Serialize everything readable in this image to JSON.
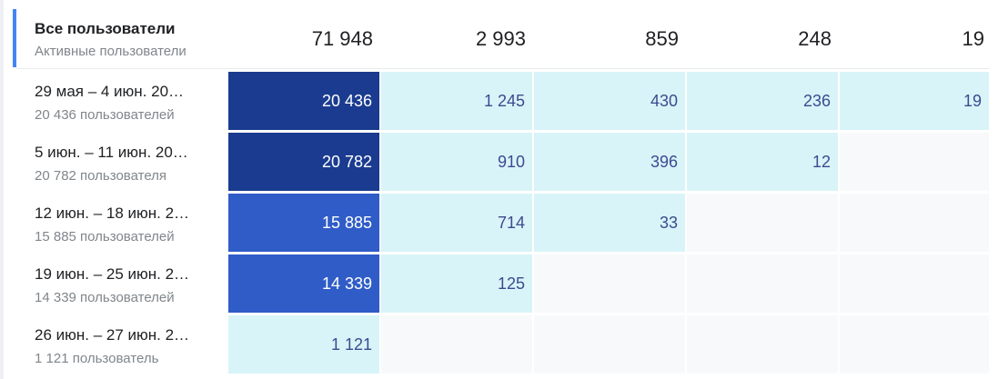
{
  "header": {
    "title": "Все пользователи",
    "subtitle": "Активные пользователи",
    "totals": [
      "71 948",
      "2 993",
      "859",
      "248",
      "19"
    ]
  },
  "rows": [
    {
      "label": "29 мая – 4 июн. 20…",
      "sublabel": "20 436 пользователей",
      "values": [
        "20 436",
        "1 245",
        "430",
        "236",
        "19"
      ]
    },
    {
      "label": "5 июн. – 11 июн. 20…",
      "sublabel": "20 782 пользователя",
      "values": [
        "20 782",
        "910",
        "396",
        "12",
        ""
      ]
    },
    {
      "label": "12 июн. – 18 июн. 2…",
      "sublabel": "15 885 пользователей",
      "values": [
        "15 885",
        "714",
        "33",
        "",
        ""
      ]
    },
    {
      "label": "19 июн. – 25 июн. 2…",
      "sublabel": "14 339 пользователей",
      "values": [
        "14 339",
        "125",
        "",
        "",
        ""
      ]
    },
    {
      "label": "26 июн. – 27 июн. 2…",
      "sublabel": "1 121 пользователь",
      "values": [
        "1 121",
        "",
        "",
        "",
        ""
      ]
    }
  ],
  "colors": {
    "accent": "#4285f4",
    "dark_blue": "#1a3b8f",
    "mid_blue": "#2f5cc7",
    "light_cyan": "#d8f4f8",
    "empty": "#f8f9fa"
  }
}
